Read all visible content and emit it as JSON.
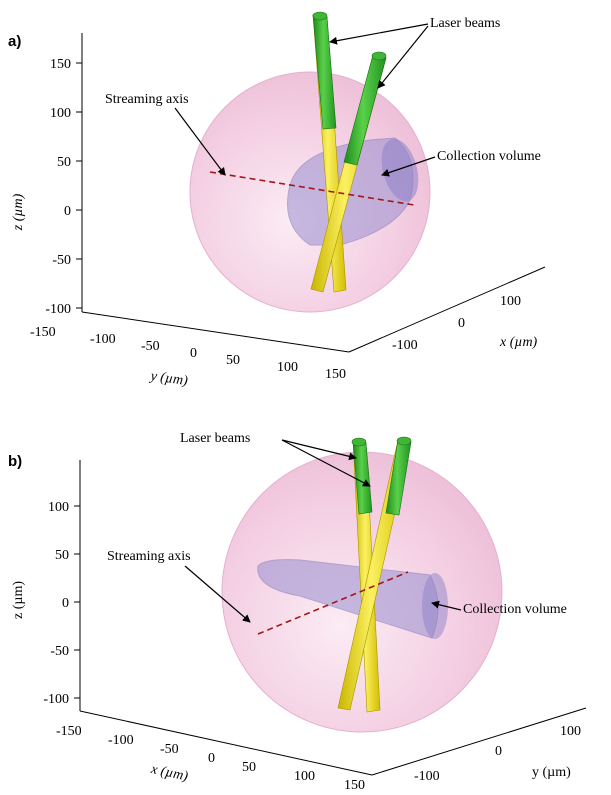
{
  "panels": [
    {
      "label": "a)",
      "z_axis": {
        "label": "z (µm)",
        "ticks": [
          "150",
          "100",
          "50",
          "0",
          "-50",
          "-100"
        ]
      },
      "bottom_left_axis": {
        "label": "y (µm)",
        "ticks": [
          "-150",
          "-100",
          "-50",
          "0",
          "50",
          "100",
          "150"
        ]
      },
      "bottom_right_axis": {
        "label": "x (µm)",
        "ticks": [
          "-100",
          "0",
          "100"
        ]
      },
      "annotations": {
        "laser": "Laser beams",
        "streaming": "Streaming axis",
        "collection": "Collection volume"
      }
    },
    {
      "label": "b)",
      "z_axis": {
        "label": "z (µm)",
        "ticks": [
          "100",
          "50",
          "0",
          "-50",
          "-100"
        ]
      },
      "bottom_left_axis": {
        "label": "x (µm)",
        "ticks": [
          "-150",
          "-100",
          "-50",
          "0",
          "50",
          "100",
          "150"
        ]
      },
      "bottom_right_axis": {
        "label": "y (µm)",
        "ticks": [
          "-100",
          "0",
          "100"
        ]
      },
      "annotations": {
        "laser": "Laser beams",
        "streaming": "Streaming axis",
        "collection": "Collection volume"
      }
    }
  ],
  "colors": {
    "sphere": "#f2c4dc",
    "laser_yellow": "#f2e21a",
    "laser_green": "#35b02a",
    "collection": "#9a8fd0",
    "streaming_line": "#a01818"
  }
}
